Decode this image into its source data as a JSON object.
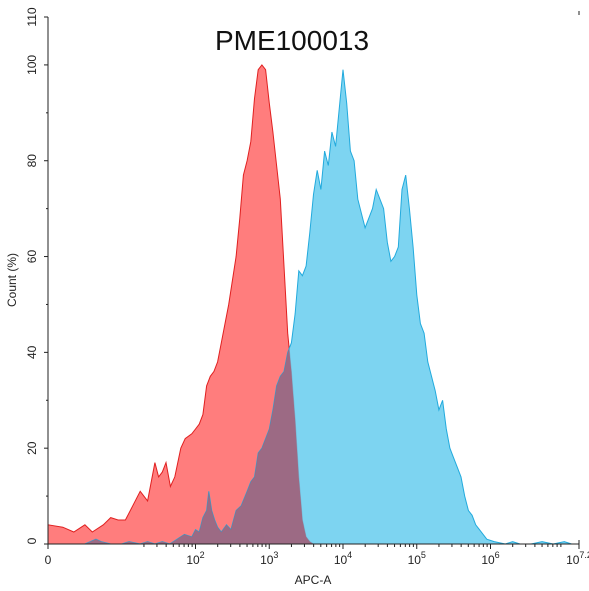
{
  "chart_data": {
    "type": "area",
    "title": "PME100013",
    "xlabel": "APC-A",
    "ylabel": "Count (%)",
    "x_scale": "biexponential",
    "xlim": [
      0,
      7.2
    ],
    "ylim": [
      0,
      110
    ],
    "x_ticks": [
      {
        "value": 0,
        "base": "0",
        "exp": ""
      },
      {
        "value": 2,
        "base": "10",
        "exp": "2"
      },
      {
        "value": 3,
        "base": "10",
        "exp": "3"
      },
      {
        "value": 4,
        "base": "10",
        "exp": "4"
      },
      {
        "value": 5,
        "base": "10",
        "exp": "5"
      },
      {
        "value": 6,
        "base": "10",
        "exp": "6"
      },
      {
        "value": 7.2,
        "base": "10",
        "exp": "7.2"
      }
    ],
    "y_ticks": [
      "0",
      "20",
      "40",
      "60",
      "80",
      "100",
      "110"
    ],
    "grid": false,
    "legend": "none",
    "series": [
      {
        "color": "#ff6666",
        "stroke": "#e02020",
        "points": [
          [
            0,
            4
          ],
          [
            0.2,
            3.5
          ],
          [
            0.35,
            2.5
          ],
          [
            0.5,
            4
          ],
          [
            0.6,
            2.5
          ],
          [
            0.75,
            4
          ],
          [
            0.85,
            5.5
          ],
          [
            0.95,
            5
          ],
          [
            1.05,
            5
          ],
          [
            1.15,
            8
          ],
          [
            1.25,
            11
          ],
          [
            1.35,
            9
          ],
          [
            1.45,
            17
          ],
          [
            1.5,
            14
          ],
          [
            1.55,
            15
          ],
          [
            1.6,
            17
          ],
          [
            1.66,
            12
          ],
          [
            1.72,
            14
          ],
          [
            1.8,
            20
          ],
          [
            1.86,
            22
          ],
          [
            1.95,
            23
          ],
          [
            2.0,
            24
          ],
          [
            2.05,
            25
          ],
          [
            2.1,
            27
          ],
          [
            2.15,
            33
          ],
          [
            2.2,
            35
          ],
          [
            2.25,
            36
          ],
          [
            2.3,
            38
          ],
          [
            2.35,
            42
          ],
          [
            2.4,
            46
          ],
          [
            2.45,
            50
          ],
          [
            2.5,
            55
          ],
          [
            2.55,
            60
          ],
          [
            2.6,
            68
          ],
          [
            2.65,
            77
          ],
          [
            2.7,
            80
          ],
          [
            2.75,
            84
          ],
          [
            2.8,
            93
          ],
          [
            2.85,
            99
          ],
          [
            2.9,
            100
          ],
          [
            2.95,
            99
          ],
          [
            3.0,
            92
          ],
          [
            3.05,
            86
          ],
          [
            3.1,
            79
          ],
          [
            3.15,
            72
          ],
          [
            3.2,
            58
          ],
          [
            3.25,
            44
          ],
          [
            3.3,
            36
          ],
          [
            3.35,
            26
          ],
          [
            3.4,
            14
          ],
          [
            3.45,
            5
          ],
          [
            3.5,
            1.5
          ],
          [
            3.55,
            0.5
          ],
          [
            3.6,
            0
          ]
        ]
      },
      {
        "color": "#66ccee",
        "stroke": "#22aadd",
        "points": [
          [
            0.5,
            0
          ],
          [
            0.65,
            1
          ],
          [
            0.72,
            0.5
          ],
          [
            0.85,
            0
          ],
          [
            1.0,
            0
          ],
          [
            1.1,
            0.5
          ],
          [
            1.25,
            0
          ],
          [
            1.35,
            0.5
          ],
          [
            1.45,
            0
          ],
          [
            1.55,
            0.5
          ],
          [
            1.65,
            0
          ],
          [
            1.75,
            1
          ],
          [
            1.85,
            2
          ],
          [
            1.95,
            1.5
          ],
          [
            2.0,
            3
          ],
          [
            2.05,
            2.5
          ],
          [
            2.1,
            5.5
          ],
          [
            2.15,
            7
          ],
          [
            2.18,
            11
          ],
          [
            2.22,
            7
          ],
          [
            2.26,
            5
          ],
          [
            2.3,
            3.5
          ],
          [
            2.35,
            2.5
          ],
          [
            2.42,
            4
          ],
          [
            2.48,
            3
          ],
          [
            2.55,
            7
          ],
          [
            2.62,
            8
          ],
          [
            2.7,
            11
          ],
          [
            2.75,
            13
          ],
          [
            2.8,
            14
          ],
          [
            2.85,
            19
          ],
          [
            2.9,
            20
          ],
          [
            2.95,
            22
          ],
          [
            3.0,
            24
          ],
          [
            3.05,
            28
          ],
          [
            3.1,
            33
          ],
          [
            3.15,
            35
          ],
          [
            3.2,
            36
          ],
          [
            3.25,
            40
          ],
          [
            3.3,
            42
          ],
          [
            3.35,
            48
          ],
          [
            3.4,
            57
          ],
          [
            3.45,
            56
          ],
          [
            3.5,
            58
          ],
          [
            3.55,
            65
          ],
          [
            3.6,
            73
          ],
          [
            3.65,
            78
          ],
          [
            3.7,
            74
          ],
          [
            3.75,
            82
          ],
          [
            3.8,
            79
          ],
          [
            3.85,
            86
          ],
          [
            3.9,
            83
          ],
          [
            3.95,
            91
          ],
          [
            4.0,
            99
          ],
          [
            4.05,
            92
          ],
          [
            4.1,
            82
          ],
          [
            4.15,
            80
          ],
          [
            4.2,
            72
          ],
          [
            4.25,
            69
          ],
          [
            4.3,
            66
          ],
          [
            4.35,
            68
          ],
          [
            4.4,
            70
          ],
          [
            4.45,
            74
          ],
          [
            4.5,
            72
          ],
          [
            4.55,
            70
          ],
          [
            4.6,
            63
          ],
          [
            4.65,
            59
          ],
          [
            4.7,
            60
          ],
          [
            4.75,
            62
          ],
          [
            4.8,
            74
          ],
          [
            4.85,
            77
          ],
          [
            4.9,
            70
          ],
          [
            4.95,
            62
          ],
          [
            5.0,
            52
          ],
          [
            5.05,
            46
          ],
          [
            5.1,
            44
          ],
          [
            5.15,
            38
          ],
          [
            5.2,
            35
          ],
          [
            5.25,
            32
          ],
          [
            5.3,
            28
          ],
          [
            5.35,
            30
          ],
          [
            5.4,
            24
          ],
          [
            5.45,
            20
          ],
          [
            5.5,
            18
          ],
          [
            5.55,
            16
          ],
          [
            5.6,
            14
          ],
          [
            5.65,
            10
          ],
          [
            5.7,
            7
          ],
          [
            5.75,
            6
          ],
          [
            5.8,
            4
          ],
          [
            5.85,
            3
          ],
          [
            5.95,
            1
          ],
          [
            6.05,
            0.5
          ],
          [
            6.2,
            0
          ],
          [
            6.3,
            0.5
          ],
          [
            6.4,
            0
          ],
          [
            6.55,
            0
          ],
          [
            6.7,
            0.5
          ],
          [
            6.85,
            0
          ],
          [
            7.0,
            0.5
          ],
          [
            7.1,
            0
          ],
          [
            7.2,
            0
          ]
        ]
      }
    ],
    "overlap_color": "#a0607a"
  }
}
